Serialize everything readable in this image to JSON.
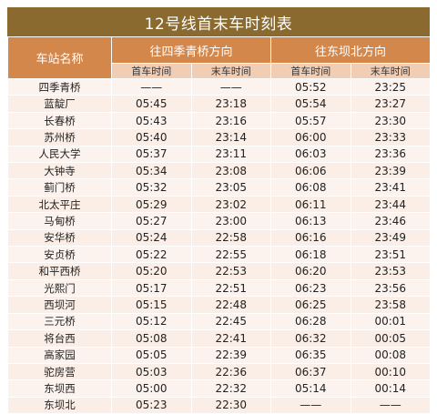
{
  "title": "12号线首末车时刻表",
  "header": {
    "station_col": "车站名称",
    "dir1": "往四季青桥方向",
    "dir2": "往东坝北方向",
    "first": "首车时间",
    "last": "末车时间"
  },
  "empty_marker": "——",
  "rows": [
    {
      "station": "四季青桥",
      "d1_first": "——",
      "d1_last": "——",
      "d2_first": "05:52",
      "d2_last": "23:25"
    },
    {
      "station": "蓝靛厂",
      "d1_first": "05:45",
      "d1_last": "23:18",
      "d2_first": "05:54",
      "d2_last": "23:27"
    },
    {
      "station": "长春桥",
      "d1_first": "05:43",
      "d1_last": "23:16",
      "d2_first": "05:57",
      "d2_last": "23:30"
    },
    {
      "station": "苏州桥",
      "d1_first": "05:40",
      "d1_last": "23:14",
      "d2_first": "06:00",
      "d2_last": "23:33"
    },
    {
      "station": "人民大学",
      "d1_first": "05:37",
      "d1_last": "23:11",
      "d2_first": "06:03",
      "d2_last": "23:36"
    },
    {
      "station": "大钟寺",
      "d1_first": "05:34",
      "d1_last": "23:08",
      "d2_first": "06:06",
      "d2_last": "23:39"
    },
    {
      "station": "蓟门桥",
      "d1_first": "05:32",
      "d1_last": "23:05",
      "d2_first": "06:08",
      "d2_last": "23:41"
    },
    {
      "station": "北太平庄",
      "d1_first": "05:29",
      "d1_last": "23:02",
      "d2_first": "06:11",
      "d2_last": "23:44"
    },
    {
      "station": "马甸桥",
      "d1_first": "05:27",
      "d1_last": "23:00",
      "d2_first": "06:13",
      "d2_last": "23:46"
    },
    {
      "station": "安华桥",
      "d1_first": "05:24",
      "d1_last": "22:58",
      "d2_first": "06:16",
      "d2_last": "23:49"
    },
    {
      "station": "安贞桥",
      "d1_first": "05:22",
      "d1_last": "22:55",
      "d2_first": "06:18",
      "d2_last": "23:51"
    },
    {
      "station": "和平西桥",
      "d1_first": "05:20",
      "d1_last": "22:53",
      "d2_first": "06:20",
      "d2_last": "23:53"
    },
    {
      "station": "光熙门",
      "d1_first": "05:17",
      "d1_last": "22:51",
      "d2_first": "06:23",
      "d2_last": "23:56"
    },
    {
      "station": "西坝河",
      "d1_first": "05:15",
      "d1_last": "22:48",
      "d2_first": "06:25",
      "d2_last": "23:58"
    },
    {
      "station": "三元桥",
      "d1_first": "05:12",
      "d1_last": "22:45",
      "d2_first": "06:28",
      "d2_last": "00:01"
    },
    {
      "station": "将台西",
      "d1_first": "05:08",
      "d1_last": "22:41",
      "d2_first": "06:32",
      "d2_last": "00:05"
    },
    {
      "station": "高家园",
      "d1_first": "05:05",
      "d1_last": "22:39",
      "d2_first": "06:35",
      "d2_last": "00:08"
    },
    {
      "station": "驼房营",
      "d1_first": "05:03",
      "d1_last": "22:36",
      "d2_first": "06:37",
      "d2_last": "00:10"
    },
    {
      "station": "东坝西",
      "d1_first": "05:00",
      "d1_last": "22:32",
      "d2_first": "05:14",
      "d2_last": "00:14"
    },
    {
      "station": "东坝北",
      "d1_first": "05:23",
      "d1_last": "22:30",
      "d2_first": "——",
      "d2_last": "——"
    }
  ]
}
